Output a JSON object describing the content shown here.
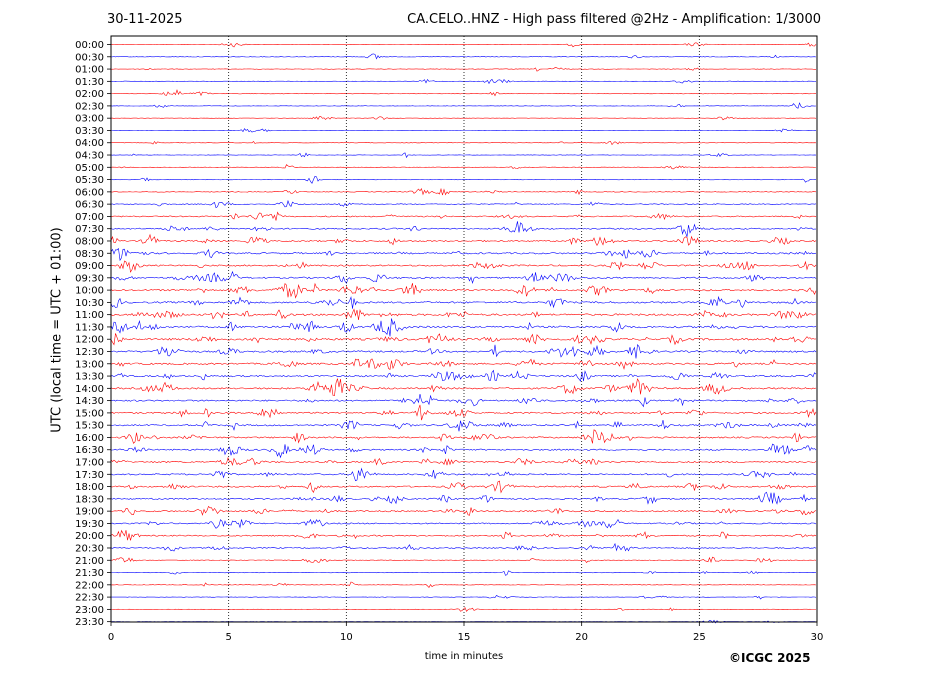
{
  "header": {
    "date": "30-11-2025",
    "title": "CA.CELO..HNZ - High pass filtered @2Hz - Amplification: 1/3000"
  },
  "footer": {
    "credit": "©ICGC 2025"
  },
  "chart_data": {
    "type": "line",
    "title": "CA.CELO..HNZ - High pass filtered @2Hz - Amplification: 1/3000",
    "xlabel": "time in minutes",
    "ylabel": "UTC (local time = UTC + 01:00)",
    "xlim": [
      0,
      30
    ],
    "xticks": [
      0,
      5,
      10,
      15,
      20,
      25,
      30
    ],
    "vertical_gridlines": [
      5,
      10,
      15,
      20,
      25
    ],
    "rows": [
      "00:00",
      "00:30",
      "01:00",
      "01:30",
      "02:00",
      "02:30",
      "03:00",
      "03:30",
      "04:00",
      "04:30",
      "05:00",
      "05:30",
      "06:00",
      "06:30",
      "07:00",
      "07:30",
      "08:00",
      "08:30",
      "09:00",
      "09:30",
      "10:00",
      "10:30",
      "11:00",
      "11:30",
      "12:00",
      "12:30",
      "13:00",
      "13:30",
      "14:00",
      "14:30",
      "15:00",
      "15:30",
      "16:00",
      "16:30",
      "17:00",
      "17:30",
      "18:00",
      "18:30",
      "19:00",
      "19:30",
      "20:00",
      "20:30",
      "21:00",
      "21:30",
      "22:00",
      "22:30",
      "23:00",
      "23:30"
    ],
    "colors": [
      "#ff0000",
      "#0000ff"
    ],
    "row_noise_level": [
      0.6,
      0.7,
      0.7,
      0.6,
      0.7,
      0.6,
      0.5,
      0.5,
      0.6,
      0.6,
      0.7,
      0.7,
      0.9,
      1.2,
      1.6,
      1.8,
      2.0,
      2.1,
      2.1,
      2.2,
      2.3,
      2.4,
      2.5,
      2.6,
      2.8,
      2.4,
      2.3,
      2.2,
      2.2,
      2.1,
      2.1,
      2.1,
      2.1,
      2.0,
      2.0,
      2.0,
      2.0,
      1.9,
      1.9,
      1.8,
      1.8,
      1.4,
      1.0,
      0.8,
      0.7,
      0.6,
      0.5,
      0.4
    ]
  }
}
